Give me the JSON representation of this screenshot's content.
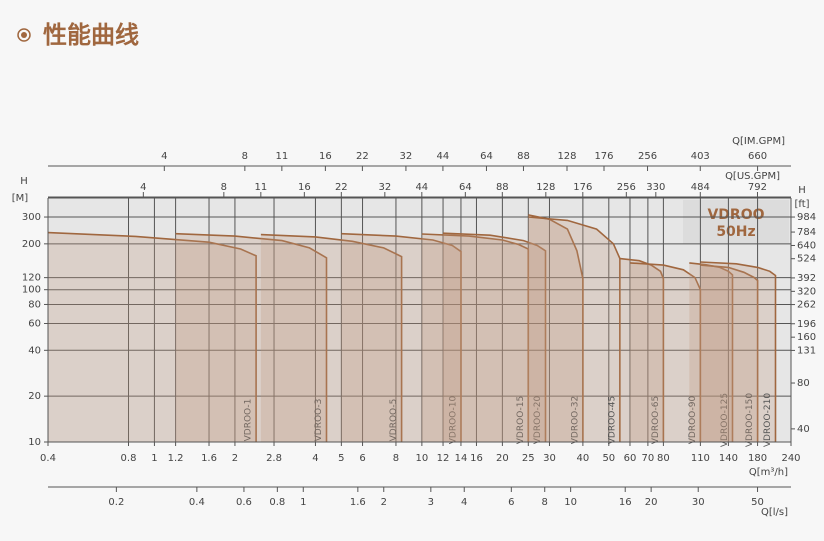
{
  "chart_data": {
    "type": "line",
    "title": "性能曲线",
    "x_label": "Q[m³/h]",
    "y_label_top": "H",
    "y_label": "[M]",
    "y2_label_top": "H",
    "y2_label": "[ft]",
    "xscale": "log",
    "yscale": "log",
    "grid": true,
    "color": "#a0673f",
    "xlim": [
      0.4,
      240
    ],
    "xticks": [
      0.4,
      0.8,
      1,
      1.2,
      1.6,
      2,
      2.8,
      4,
      5,
      6,
      8,
      10,
      12,
      14,
      16,
      20,
      25,
      30,
      40,
      50,
      60,
      70,
      80,
      110,
      140,
      180,
      240
    ],
    "ylim": [
      10,
      400
    ],
    "yticks": [
      10,
      20,
      40,
      60,
      80,
      100,
      120,
      200,
      300
    ],
    "y2lim": [
      32.8,
      1312
    ],
    "y2ticks": [
      40,
      80,
      131,
      160,
      196,
      262,
      320,
      392,
      524,
      640,
      784,
      984
    ],
    "im_gpm_label": "Q[IM.GPM]",
    "im_gpm_lim": [
      1.47,
      880
    ],
    "im_gpm_ticks": [
      4,
      8,
      11,
      16,
      22,
      32,
      44,
      64,
      88,
      128,
      176,
      256,
      403,
      660
    ],
    "us_gpm_label": "Q[US.GPM]",
    "us_gpm_lim": [
      1.76,
      1057
    ],
    "us_gpm_ticks": [
      4,
      8,
      11,
      16,
      22,
      32,
      44,
      64,
      88,
      128,
      176,
      256,
      330,
      484,
      792
    ],
    "ls_label": "Q[l/s]",
    "ls_lim": [
      0.111,
      66.7
    ],
    "ls_ticks": [
      0.2,
      0.4,
      0.6,
      0.8,
      1,
      1.6,
      2,
      3,
      4,
      6,
      8,
      10,
      16,
      20,
      30,
      50
    ],
    "annotations": [
      "VDROO",
      "50Hz"
    ],
    "series": [
      {
        "name": "VDROO-1",
        "x": [
          0.4,
          0.85,
          1.6,
          2.1,
          2.4,
          2.4
        ],
        "values": [
          237,
          224,
          205,
          185,
          167,
          10
        ]
      },
      {
        "name": "VDROO-3",
        "x": [
          1.2,
          2,
          3,
          3.8,
          4.4,
          4.4
        ],
        "values": [
          233,
          225,
          210,
          188,
          162,
          10
        ]
      },
      {
        "name": "VDROO-5",
        "x": [
          2.5,
          4,
          5.5,
          7.2,
          8.4,
          8.4
        ],
        "values": [
          230,
          222,
          208,
          188,
          165,
          10
        ]
      },
      {
        "name": "VDROO-10",
        "x": [
          5,
          8,
          11,
          13,
          14,
          14
        ],
        "values": [
          233,
          225,
          212,
          195,
          178,
          10
        ]
      },
      {
        "name": "VDROO-15",
        "x": [
          10,
          15,
          20,
          23,
          25,
          25
        ],
        "values": [
          232,
          225,
          212,
          198,
          185,
          10
        ]
      },
      {
        "name": "VDROO-20",
        "x": [
          12,
          18,
          24,
          27,
          29,
          29
        ],
        "values": [
          235,
          228,
          210,
          195,
          180,
          10
        ]
      },
      {
        "name": "VDROO-32",
        "x": [
          25,
          30,
          35,
          38,
          40,
          40
        ],
        "values": [
          310,
          290,
          250,
          180,
          118,
          10
        ]
      },
      {
        "name": "VDROO-45",
        "x": [
          25,
          35,
          45,
          52,
          55,
          55
        ],
        "values": [
          300,
          285,
          250,
          200,
          160,
          10
        ]
      },
      {
        "name": "VDROO-65",
        "x": [
          55,
          65,
          72,
          78,
          80,
          80
        ],
        "values": [
          160,
          155,
          145,
          132,
          118,
          10
        ]
      },
      {
        "name": "VDROO-90",
        "x": [
          60,
          80,
          95,
          105,
          110,
          110
        ],
        "values": [
          150,
          145,
          135,
          120,
          100,
          10
        ]
      },
      {
        "name": "VDROO-125",
        "x": [
          100,
          115,
          130,
          140,
          145,
          145
        ],
        "values": [
          150,
          146,
          140,
          132,
          125,
          10
        ]
      },
      {
        "name": "VDROO-150",
        "x": [
          110,
          140,
          160,
          175,
          180,
          180
        ],
        "values": [
          145,
          140,
          130,
          120,
          115,
          10
        ]
      },
      {
        "name": "VDROO-210",
        "x": [
          110,
          150,
          180,
          200,
          210,
          210
        ],
        "values": [
          152,
          148,
          140,
          132,
          124,
          10
        ]
      }
    ]
  }
}
